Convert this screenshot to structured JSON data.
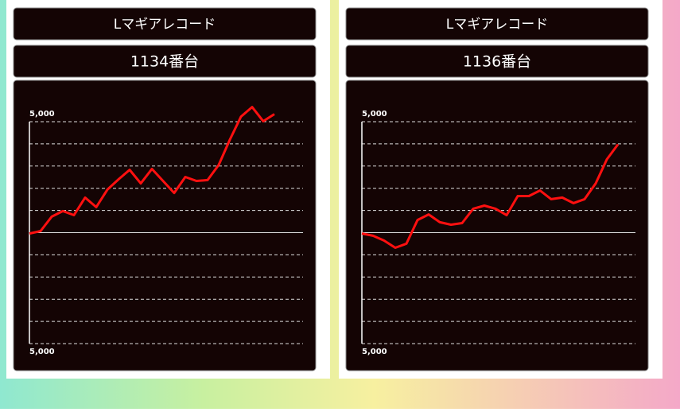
{
  "chart_data": [
    {
      "type": "line",
      "title": "Lマギアレコード",
      "subtitle": "1134番台",
      "color": "#ff1010",
      "values": [
        -40,
        70,
        720,
        970,
        790,
        1580,
        1150,
        1940,
        2400,
        2830,
        2220,
        2870,
        2330,
        1790,
        2510,
        2330,
        2370,
        3050,
        4190,
        5230,
        5660,
        5020,
        5340
      ],
      "ylim": [
        -5000,
        5000
      ],
      "yticks": [
        {
          "value": 5000,
          "label": "5,000"
        },
        {
          "value": 4000,
          "label": null
        },
        {
          "value": 3000,
          "label": null
        },
        {
          "value": 2000,
          "label": null
        },
        {
          "value": 1000,
          "label": null
        },
        {
          "value": 0,
          "label": null
        },
        {
          "value": -1000,
          "label": null
        },
        {
          "value": -2000,
          "label": null
        },
        {
          "value": -3000,
          "label": null
        },
        {
          "value": -4000,
          "label": null
        },
        {
          "value": -5000,
          "label": "5,000"
        }
      ],
      "grid": true
    },
    {
      "type": "line",
      "title": "Lマギアレコード",
      "subtitle": "1136番台",
      "color": "#ff1010",
      "values": [
        -40,
        -140,
        -360,
        -680,
        -500,
        570,
        820,
        470,
        360,
        430,
        1080,
        1220,
        1080,
        790,
        1650,
        1650,
        1900,
        1510,
        1580,
        1330,
        1510,
        2220,
        3300,
        3980
      ],
      "ylim": [
        -5000,
        5000
      ],
      "yticks": [
        {
          "value": 5000,
          "label": "5,000"
        },
        {
          "value": 4000,
          "label": null
        },
        {
          "value": 3000,
          "label": null
        },
        {
          "value": 2000,
          "label": null
        },
        {
          "value": 1000,
          "label": null
        },
        {
          "value": 0,
          "label": null
        },
        {
          "value": -1000,
          "label": null
        },
        {
          "value": -2000,
          "label": null
        },
        {
          "value": -3000,
          "label": null
        },
        {
          "value": -4000,
          "label": null
        },
        {
          "value": -5000,
          "label": "5,000"
        }
      ],
      "grid": true
    }
  ]
}
